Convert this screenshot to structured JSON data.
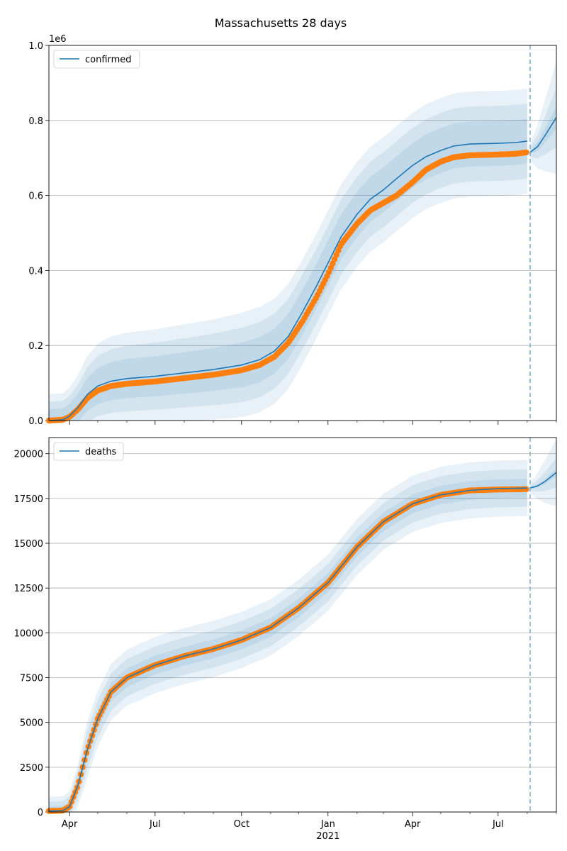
{
  "figure_title": "Massachusetts 28 days",
  "colors": {
    "model": "#1f77b4",
    "observed": "#ff7f0e",
    "band": "#1f77b4",
    "grid": "#b0b0b0",
    "forecast_line": "#7fb3d5"
  },
  "chart_data": [
    {
      "type": "line",
      "title": "",
      "xlabel": "",
      "ylabel": "",
      "legend_position": "upper-left",
      "grid": "horizontal",
      "y_offset_label": "1e6",
      "x_unit": "date",
      "xlim": [
        "2020-03-10",
        "2021-09-01"
      ],
      "ylim": [
        0,
        1000000
      ],
      "y_ticks": [
        0,
        200000,
        400000,
        600000,
        800000,
        1000000
      ],
      "y_tick_labels": [
        "0.0",
        "0.2",
        "0.4",
        "0.6",
        "0.8",
        "1.0"
      ],
      "x_ticks": [
        "2020-04-01",
        "2020-07-01",
        "2020-10-01",
        "2021-01-01",
        "2021-04-01",
        "2021-07-01"
      ],
      "forecast_start": "2021-08-04",
      "series": [
        {
          "name": "confirmed",
          "role": "model",
          "points": [
            [
              "2020-03-10",
              0
            ],
            [
              "2020-03-25",
              2000
            ],
            [
              "2020-04-01",
              12000
            ],
            [
              "2020-04-10",
              35000
            ],
            [
              "2020-04-20",
              70000
            ],
            [
              "2020-05-01",
              92000
            ],
            [
              "2020-05-15",
              105000
            ],
            [
              "2020-06-01",
              112000
            ],
            [
              "2020-07-01",
              118000
            ],
            [
              "2020-08-01",
              127000
            ],
            [
              "2020-09-01",
              136000
            ],
            [
              "2020-10-01",
              148000
            ],
            [
              "2020-10-20",
              162000
            ],
            [
              "2020-11-05",
              185000
            ],
            [
              "2020-11-20",
              225000
            ],
            [
              "2020-12-05",
              290000
            ],
            [
              "2020-12-20",
              360000
            ],
            [
              "2021-01-01",
              420000
            ],
            [
              "2021-01-15",
              490000
            ],
            [
              "2021-02-01",
              550000
            ],
            [
              "2021-02-15",
              590000
            ],
            [
              "2021-03-01",
              615000
            ],
            [
              "2021-03-15",
              645000
            ],
            [
              "2021-04-01",
              680000
            ],
            [
              "2021-04-15",
              703000
            ],
            [
              "2021-05-01",
              720000
            ],
            [
              "2021-05-15",
              732000
            ],
            [
              "2021-06-01",
              737000
            ],
            [
              "2021-07-01",
              739000
            ],
            [
              "2021-07-20",
              741000
            ],
            [
              "2021-08-01",
              745000
            ]
          ],
          "band_widths": [
            0.06,
            0.1,
            0.14
          ]
        },
        {
          "name": "confirmed-forecast",
          "role": "forecast",
          "points": [
            [
              "2021-08-04",
              715000
            ],
            [
              "2021-08-12",
              730000
            ],
            [
              "2021-08-20",
              760000
            ],
            [
              "2021-09-01",
              808000
            ]
          ],
          "band_widths": [
            0.03,
            0.08,
            0.15
          ]
        },
        {
          "name": "confirmed-observed",
          "role": "observed",
          "points": [
            [
              "2020-03-10",
              0
            ],
            [
              "2020-03-25",
              2000
            ],
            [
              "2020-04-01",
              10000
            ],
            [
              "2020-04-10",
              30000
            ],
            [
              "2020-04-20",
              60000
            ],
            [
              "2020-05-01",
              80000
            ],
            [
              "2020-05-15",
              92000
            ],
            [
              "2020-06-01",
              98000
            ],
            [
              "2020-07-01",
              104000
            ],
            [
              "2020-08-01",
              113000
            ],
            [
              "2020-09-01",
              122000
            ],
            [
              "2020-10-01",
              134000
            ],
            [
              "2020-10-20",
              148000
            ],
            [
              "2020-11-05",
              170000
            ],
            [
              "2020-11-20",
              208000
            ],
            [
              "2020-12-05",
              265000
            ],
            [
              "2020-12-20",
              330000
            ],
            [
              "2021-01-01",
              390000
            ],
            [
              "2021-01-15",
              470000
            ],
            [
              "2021-02-01",
              525000
            ],
            [
              "2021-02-15",
              560000
            ],
            [
              "2021-03-01",
              580000
            ],
            [
              "2021-03-15",
              600000
            ],
            [
              "2021-04-01",
              635000
            ],
            [
              "2021-04-15",
              668000
            ],
            [
              "2021-05-01",
              690000
            ],
            [
              "2021-05-15",
              702000
            ],
            [
              "2021-06-01",
              707000
            ],
            [
              "2021-07-01",
              709000
            ],
            [
              "2021-07-20",
              711000
            ],
            [
              "2021-08-01",
              715000
            ]
          ]
        }
      ]
    },
    {
      "type": "line",
      "title": "",
      "xlabel": "",
      "ylabel": "",
      "legend_position": "upper-left",
      "grid": "horizontal",
      "x_unit": "date",
      "xlim": [
        "2020-03-10",
        "2021-09-01"
      ],
      "ylim": [
        0,
        20900
      ],
      "y_ticks": [
        0,
        2500,
        5000,
        7500,
        10000,
        12500,
        15000,
        17500,
        20000
      ],
      "y_tick_labels": [
        "0",
        "2500",
        "5000",
        "7500",
        "10000",
        "12500",
        "15000",
        "17500",
        "20000"
      ],
      "x_ticks": [
        "2020-04-01",
        "2020-07-01",
        "2020-10-01",
        "2021-01-01",
        "2021-04-01",
        "2021-07-01"
      ],
      "x_tick_labels": [
        "Apr",
        "Jul",
        "Oct",
        "Jan",
        "Apr",
        "Jul"
      ],
      "x_year_label": "2021",
      "forecast_start": "2021-08-04",
      "series": [
        {
          "name": "deaths",
          "role": "model",
          "points": [
            [
              "2020-03-10",
              50
            ],
            [
              "2020-03-25",
              80
            ],
            [
              "2020-04-01",
              300
            ],
            [
              "2020-04-10",
              1500
            ],
            [
              "2020-04-20",
              3500
            ],
            [
              "2020-05-01",
              5200
            ],
            [
              "2020-05-15",
              6700
            ],
            [
              "2020-06-01",
              7500
            ],
            [
              "2020-07-01",
              8200
            ],
            [
              "2020-08-01",
              8700
            ],
            [
              "2020-09-01",
              9100
            ],
            [
              "2020-10-01",
              9600
            ],
            [
              "2020-11-01",
              10300
            ],
            [
              "2020-12-01",
              11400
            ],
            [
              "2021-01-01",
              12800
            ],
            [
              "2021-02-01",
              14800
            ],
            [
              "2021-03-01",
              16200
            ],
            [
              "2021-04-01",
              17200
            ],
            [
              "2021-05-01",
              17700
            ],
            [
              "2021-06-01",
              17950
            ],
            [
              "2021-07-01",
              18050
            ],
            [
              "2021-08-01",
              18080
            ]
          ],
          "band_widths": [
            0.025,
            0.05,
            0.075
          ]
        },
        {
          "name": "deaths-forecast",
          "role": "forecast",
          "points": [
            [
              "2021-08-04",
              18080
            ],
            [
              "2021-08-12",
              18200
            ],
            [
              "2021-08-20",
              18450
            ],
            [
              "2021-09-01",
              18950
            ]
          ],
          "band_widths": [
            0.01,
            0.04,
            0.09
          ]
        },
        {
          "name": "deaths-observed",
          "role": "observed",
          "points": [
            [
              "2020-03-10",
              50
            ],
            [
              "2020-03-25",
              80
            ],
            [
              "2020-04-01",
              300
            ],
            [
              "2020-04-10",
              1500
            ],
            [
              "2020-04-20",
              3500
            ],
            [
              "2020-05-01",
              5200
            ],
            [
              "2020-05-15",
              6700
            ],
            [
              "2020-06-01",
              7500
            ],
            [
              "2020-07-01",
              8200
            ],
            [
              "2020-08-01",
              8700
            ],
            [
              "2020-09-01",
              9100
            ],
            [
              "2020-10-01",
              9600
            ],
            [
              "2020-11-01",
              10300
            ],
            [
              "2020-12-01",
              11400
            ],
            [
              "2021-01-01",
              12800
            ],
            [
              "2021-02-01",
              14800
            ],
            [
              "2021-03-01",
              16200
            ],
            [
              "2021-04-01",
              17200
            ],
            [
              "2021-05-01",
              17700
            ],
            [
              "2021-06-01",
              17950
            ],
            [
              "2021-07-01",
              18000
            ],
            [
              "2021-08-01",
              18020
            ]
          ]
        }
      ]
    }
  ]
}
